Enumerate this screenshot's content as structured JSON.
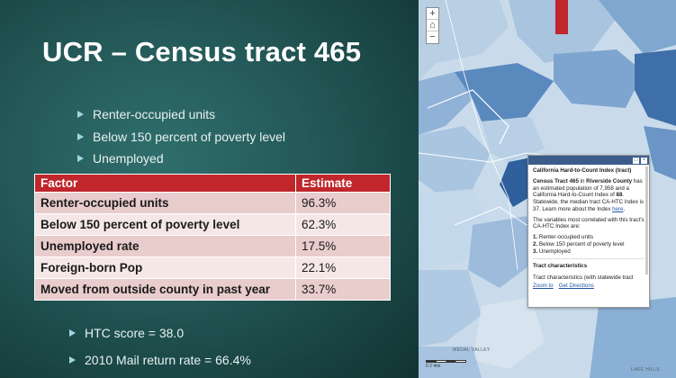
{
  "slide": {
    "title": "UCR – Census tract 465",
    "bullets": [
      "Renter-occupied units",
      "Below 150 percent of poverty level",
      "Unemployed"
    ],
    "table": {
      "headers": [
        "Factor",
        "Estimate"
      ],
      "rows": [
        {
          "factor": "Renter-occupied units",
          "estimate": "96.3%"
        },
        {
          "factor": "Below 150 percent of poverty level",
          "estimate": "62.3%"
        },
        {
          "factor": "Unemployed rate",
          "estimate": "17.5%"
        },
        {
          "factor": "Foreign-born Pop",
          "estimate": "22.1%"
        },
        {
          "factor": "Moved from outside county in past year",
          "estimate": "33.7%"
        }
      ]
    },
    "bottom_bullets": [
      "HTC score = 38.0",
      "2010 Mail return rate = 66.4%"
    ]
  },
  "map": {
    "zoom_in": "+",
    "home": "⌂",
    "zoom_out": "−",
    "popup": {
      "title": "California Hard-to-Count Index (tract)",
      "tract": "Census Tract 465",
      "in_text": " in ",
      "county": "Riverside County",
      "desc1": " has an estimated population of 7,958 and a California Hard-to-Count Index of ",
      "index_value": "88",
      "desc2": ". Statewide, the median tract CA-HTC Index is 37. Learn more about the Index ",
      "here_link": "here",
      "period": ".",
      "vars_intro": "The variables most correlated with this tract's CA-HTC Index are:",
      "vars": [
        {
          "num": "1.",
          "label": " Renter-occupied units"
        },
        {
          "num": "2.",
          "label": " Below 150 percent of poverty level"
        },
        {
          "num": "3.",
          "label": " Unemployed"
        }
      ],
      "section": "Tract characteristics",
      "section_text": "Tract characteristics (with statewide tract",
      "zoom_link": "Zoom to",
      "directions_link": "Get Directions"
    },
    "labels": {
      "valley": "MEDAL VALLEY",
      "lake": "LAKE HILLS"
    },
    "scale_text": "0    2    4mi"
  }
}
